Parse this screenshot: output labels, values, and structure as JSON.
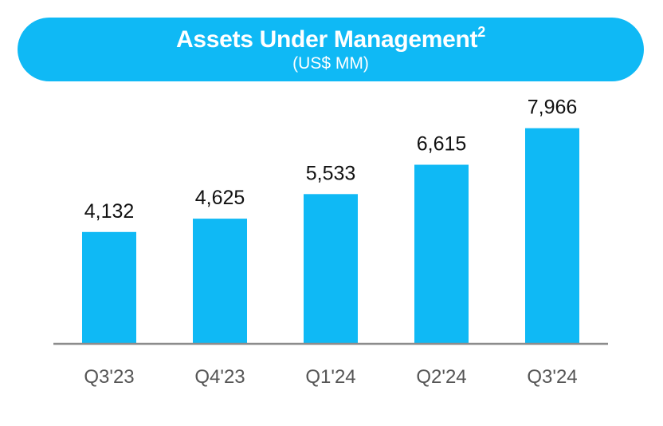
{
  "chart_data": {
    "type": "bar",
    "title": "Assets Under Management",
    "title_superscript": "2",
    "subtitle": "(US$ MM)",
    "categories": [
      "Q3'23",
      "Q4'23",
      "Q1'24",
      "Q2'24",
      "Q3'24"
    ],
    "values": [
      4132,
      4625,
      5533,
      6615,
      7966
    ],
    "value_labels": [
      "4,132",
      "4,625",
      "5,533",
      "6,615",
      "7,966"
    ],
    "ylim": [
      0,
      8900
    ],
    "xlabel": "",
    "ylabel": "",
    "grid": false,
    "legend": "none",
    "colors": {
      "bar": "#0fb9f5",
      "banner": "#0fb9f5",
      "axis": "#8c8c8c",
      "value_text": "#111111",
      "category_text": "#555555"
    }
  }
}
